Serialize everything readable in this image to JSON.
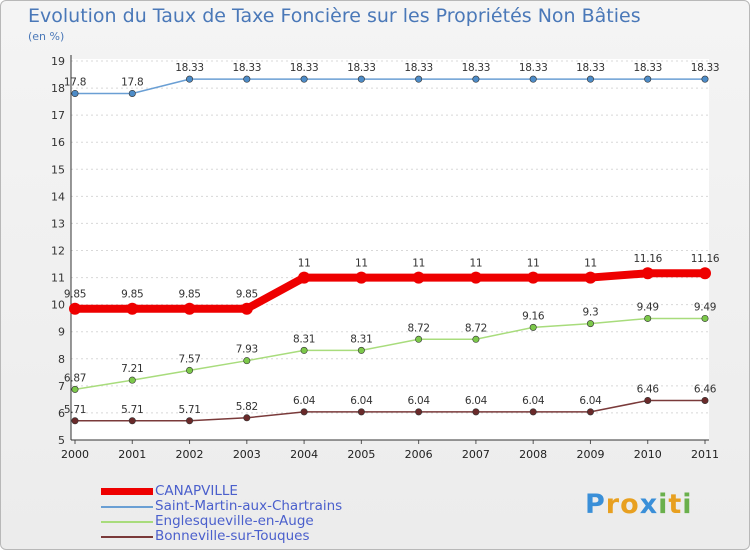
{
  "title": "Evolution du Taux de Taxe Foncière sur les Propriétés Non Bâties",
  "subtitle": "(en %)",
  "logo": {
    "letters": [
      "P",
      "r",
      "o",
      "x",
      "i",
      "t",
      "i"
    ],
    "colors": [
      "#3a8fd8",
      "#e8a020",
      "#e8a020",
      "#3a8fd8",
      "#6ab04c",
      "#e8a020",
      "#6ab04c"
    ]
  },
  "chart_data": {
    "type": "line",
    "x": [
      "2000",
      "2001",
      "2002",
      "2003",
      "2004",
      "2005",
      "2006",
      "2007",
      "2008",
      "2009",
      "2010",
      "2011"
    ],
    "y_ticks": [
      "5",
      "6",
      "7",
      "8",
      "9",
      "10",
      "11",
      "12",
      "13",
      "14",
      "15",
      "16",
      "17",
      "18",
      "19"
    ],
    "ylim": [
      5,
      19
    ],
    "series": [
      {
        "name": "CANAPVILLE",
        "color": "#ee0000",
        "emphasis": true,
        "values": [
          9.85,
          9.85,
          9.85,
          9.85,
          11,
          11,
          11,
          11,
          11,
          11,
          11.16,
          11.16
        ],
        "labels": [
          "9.85",
          "9.85",
          "9.85",
          "9.85",
          "11",
          "11",
          "11",
          "11",
          "11",
          "11",
          "11.16",
          "11.16"
        ]
      },
      {
        "name": "Saint-Martin-aux-Chartrains",
        "color": "#6a9fd4",
        "marker": "#4d8cc8",
        "values": [
          17.8,
          17.8,
          18.33,
          18.33,
          18.33,
          18.33,
          18.33,
          18.33,
          18.33,
          18.33,
          18.33,
          18.33
        ],
        "labels": [
          "17.8",
          "17.8",
          "18.33",
          "18.33",
          "18.33",
          "18.33",
          "18.33",
          "18.33",
          "18.33",
          "18.33",
          "18.33",
          "18.33"
        ]
      },
      {
        "name": "Englesqueville-en-Auge",
        "color": "#a8dc7c",
        "marker": "#7cc84a",
        "values": [
          6.87,
          7.21,
          7.57,
          7.93,
          8.31,
          8.31,
          8.72,
          8.72,
          9.16,
          9.3,
          9.49,
          9.49
        ],
        "labels": [
          "6.87",
          "7.21",
          "7.57",
          "7.93",
          "8.31",
          "8.31",
          "8.72",
          "8.72",
          "9.16",
          "9.3",
          "9.49",
          "9.49"
        ]
      },
      {
        "name": "Bonneville-sur-Touques",
        "color": "#7a3a3a",
        "marker": "#6a2a2a",
        "values": [
          5.71,
          5.71,
          5.71,
          5.82,
          6.04,
          6.04,
          6.04,
          6.04,
          6.04,
          6.04,
          6.46,
          6.46
        ],
        "labels": [
          "5.71",
          "5.71",
          "5.71",
          "5.82",
          "6.04",
          "6.04",
          "6.04",
          "6.04",
          "6.04",
          "6.04",
          "6.46",
          "6.46"
        ]
      }
    ]
  }
}
